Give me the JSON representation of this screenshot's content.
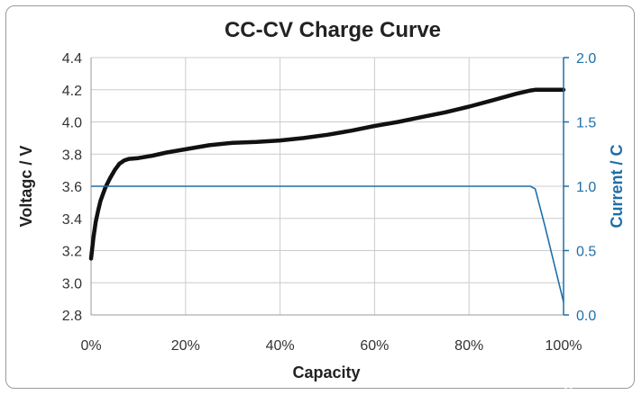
{
  "chart_data": {
    "type": "line",
    "title": "CC-CV Charge Curve",
    "xlabel": "Capacity",
    "ylabel": "Voltagc / V",
    "y2label": "Current / C",
    "xlim": [
      0,
      100
    ],
    "ylim": [
      2.8,
      4.4
    ],
    "y2lim": [
      0.0,
      2.0
    ],
    "x_ticks": [
      "0%",
      "20%",
      "40%",
      "60%",
      "80%",
      "100%"
    ],
    "y_ticks": [
      "2.8",
      "3.0",
      "3.2",
      "3.4",
      "3.6",
      "3.8",
      "4.0",
      "4.2",
      "4.4"
    ],
    "y2_ticks": [
      "0.0",
      "0.5",
      "1.0",
      "1.5",
      "2.0"
    ],
    "grid": true,
    "colors": {
      "voltage": "#111111",
      "current": "#1f6fa8",
      "grid": "#cccccc",
      "right_axis": "#1f6fa8"
    },
    "series": [
      {
        "axis": "left",
        "x": [
          0,
          0.5,
          1,
          1.5,
          2,
          3,
          4,
          5,
          6,
          7,
          8,
          10,
          13,
          16,
          20,
          25,
          30,
          35,
          40,
          45,
          50,
          55,
          60,
          65,
          70,
          75,
          80,
          85,
          90,
          93,
          94,
          95,
          100
        ],
        "values": [
          3.15,
          3.28,
          3.38,
          3.45,
          3.51,
          3.59,
          3.65,
          3.7,
          3.74,
          3.76,
          3.77,
          3.775,
          3.79,
          3.81,
          3.83,
          3.855,
          3.87,
          3.875,
          3.885,
          3.9,
          3.92,
          3.945,
          3.975,
          4.0,
          4.03,
          4.06,
          4.095,
          4.135,
          4.175,
          4.195,
          4.2,
          4.2,
          4.2
        ]
      },
      {
        "axis": "right",
        "x": [
          0,
          93,
          94,
          96,
          98,
          100
        ],
        "values": [
          1.0,
          1.0,
          0.98,
          0.7,
          0.4,
          0.1
        ]
      }
    ]
  },
  "watermark": "CSDN @JACK Star"
}
